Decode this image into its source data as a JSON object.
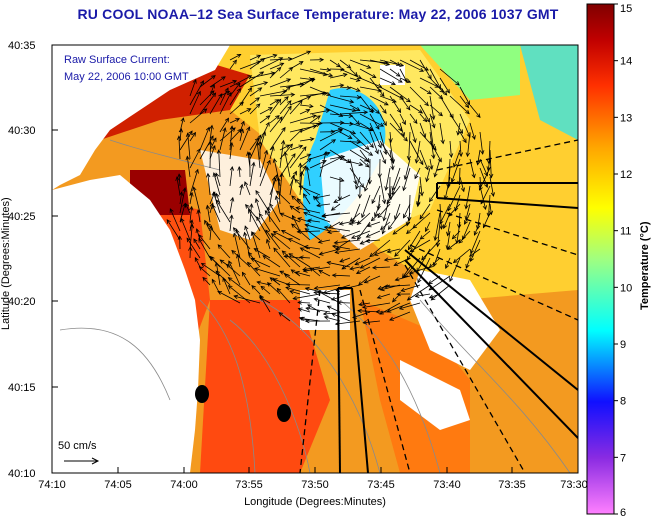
{
  "title": "RU COOL  NOAA–12  Sea Surface Temperature:  May 22, 2006 1037 GMT",
  "subtitle_line1": "Raw Surface Current:",
  "subtitle_line2": "May 22, 2006 10:00 GMT",
  "scale_label": "50 cm/s",
  "x_axis": {
    "label": "Longitude (Degrees:Minutes)",
    "ticks": [
      "74:10",
      "74:05",
      "74:00",
      "73:55",
      "73:50",
      "73:45",
      "73:40",
      "73:35",
      "73:30"
    ]
  },
  "y_axis": {
    "label": "Latitude (Degrees:Minutes)",
    "ticks": [
      "40:35",
      "40:30",
      "40:25",
      "40:20",
      "40:15",
      "40:10"
    ]
  },
  "colorbar": {
    "label": "Temperature (°C)",
    "min": 6,
    "max": 15,
    "ticks": [
      "15",
      "14",
      "13",
      "12",
      "11",
      "10",
      "9",
      "8",
      "7",
      "6"
    ],
    "colors": [
      "#ff80ff",
      "#8a2be2",
      "#1010ff",
      "#00ffff",
      "#90ff90",
      "#ffff00",
      "#ffa500",
      "#ff3000",
      "#b00000",
      "#800000"
    ]
  },
  "colors": {
    "title": "#1a1aa8",
    "land": "#ffffff",
    "ocean_warm": "#f39a20",
    "ocean_cool": "#ffdf40",
    "cold_pool": "#30d0ff"
  }
}
